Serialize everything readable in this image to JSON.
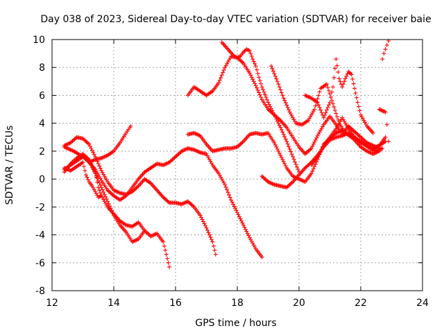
{
  "chart_data": {
    "type": "scatter",
    "title": "Day 038 of 2023, Sidereal Day-to-day VTEC variation (SDTVAR) for receiver baie",
    "xlabel": "GPS time / hours",
    "ylabel": "SDTVAR / TECUs",
    "xlim": [
      12,
      24
    ],
    "ylim": [
      -8,
      10
    ],
    "xticks": [
      12,
      14,
      16,
      18,
      20,
      22,
      24
    ],
    "yticks": [
      -8,
      -6,
      -4,
      -2,
      0,
      2,
      4,
      6,
      8,
      10
    ],
    "xtick_labels": [
      "12",
      "14",
      "16",
      "18",
      "20",
      "22",
      "24"
    ],
    "ytick_labels": [
      "-8",
      "-6",
      "-4",
      "-2",
      "0",
      "2",
      "4",
      "6",
      "8",
      "10"
    ],
    "grid": true,
    "marker": "+",
    "color": "#ff0000",
    "series": [
      {
        "name": "trace-1",
        "x": [
          12.4,
          12.7,
          13.0,
          13.2,
          13.4,
          13.6,
          13.8,
          14.0,
          14.2,
          14.4,
          14.6,
          14.8,
          15.0,
          15.2,
          15.4,
          15.6,
          15.8,
          16.0,
          16.2,
          16.4,
          16.6,
          16.8,
          17.0,
          17.2,
          17.4,
          17.6,
          17.8,
          18.0,
          18.2,
          18.4,
          18.6,
          18.8
        ],
        "y": [
          2.3,
          2.0,
          1.6,
          1.2,
          0.7,
          -0.1,
          -0.8,
          -1.2,
          -1.5,
          -1.2,
          -0.6,
          0.0,
          0.5,
          0.8,
          1.1,
          1.0,
          1.2,
          1.6,
          2.0,
          2.2,
          2.1,
          1.9,
          1.8,
          1.0,
          0.4,
          -0.4,
          -1.5,
          -2.4,
          -3.3,
          -4.2,
          -5.0,
          -5.6
        ]
      },
      {
        "name": "trace-2",
        "x": [
          12.4,
          12.6,
          12.8,
          13.0,
          13.2,
          13.4,
          13.6,
          13.8,
          14.0,
          14.2,
          14.4,
          14.6,
          14.8,
          15.0,
          15.2,
          15.4,
          15.6,
          15.8,
          16.0,
          16.2,
          16.4,
          16.6,
          16.8,
          17.0,
          17.2,
          17.3
        ],
        "y": [
          2.4,
          2.6,
          3.0,
          2.9,
          2.5,
          1.6,
          0.6,
          -0.2,
          -0.8,
          -1.0,
          -1.1,
          -0.9,
          -0.5,
          0.0,
          -0.3,
          -0.8,
          -1.3,
          -1.7,
          -1.7,
          -1.8,
          -1.6,
          -2.0,
          -2.6,
          -3.5,
          -4.5,
          -5.4
        ]
      },
      {
        "name": "trace-3",
        "x": [
          12.4,
          12.6,
          12.8,
          13.0,
          13.2,
          13.4,
          13.6,
          13.8,
          14.0,
          14.2,
          14.4,
          14.6,
          14.8,
          15.0,
          15.2,
          15.4,
          15.6,
          15.8
        ],
        "y": [
          0.7,
          1.0,
          1.3,
          1.6,
          1.3,
          0.4,
          -0.6,
          -1.6,
          -2.6,
          -3.3,
          -3.8,
          -4.5,
          -4.3,
          -3.7,
          -4.1,
          -3.9,
          -4.5,
          -6.3
        ]
      },
      {
        "name": "trace-4",
        "x": [
          12.4,
          12.6,
          12.8,
          13.0,
          13.2,
          13.4,
          13.5,
          13.6,
          13.8,
          14.0,
          14.2,
          14.4,
          14.6,
          14.8,
          15.0
        ],
        "y": [
          0.5,
          1.1,
          1.5,
          1.8,
          1.4,
          0.5,
          -0.6,
          -1.2,
          -2.0,
          -2.5,
          -3.0,
          -3.3,
          -3.4,
          -3.1,
          -3.7
        ]
      },
      {
        "name": "trace-5",
        "x": [
          12.4,
          12.6,
          12.8,
          13.0,
          13.1,
          13.2,
          13.3,
          13.4,
          13.5,
          13.6
        ],
        "y": [
          0.8,
          0.6,
          0.9,
          1.2,
          0.3,
          -0.2,
          -0.5,
          -0.9,
          -1.3,
          -1.2
        ]
      },
      {
        "name": "trace-6",
        "x": [
          13.2,
          13.4,
          13.6,
          13.8,
          14.0,
          14.2,
          14.4,
          14.55
        ],
        "y": [
          1.2,
          1.4,
          1.5,
          1.7,
          2.0,
          2.6,
          3.3,
          3.8
        ]
      },
      {
        "name": "trace-7",
        "x": [
          16.4,
          16.6,
          16.8,
          17.0,
          17.2,
          17.4,
          17.6,
          17.8,
          18.0,
          18.2,
          18.4,
          18.6,
          18.8,
          19.0,
          19.2,
          19.4,
          19.6,
          19.8,
          20.0,
          20.2,
          20.4,
          20.6,
          20.8,
          21.0,
          21.2,
          21.4,
          21.6,
          21.8,
          22.0,
          22.2,
          22.4,
          22.6
        ],
        "y": [
          3.2,
          3.3,
          3.1,
          2.5,
          2.0,
          2.1,
          2.2,
          2.2,
          2.3,
          2.7,
          3.2,
          3.3,
          3.2,
          3.3,
          2.6,
          1.7,
          0.8,
          0.2,
          0.0,
          -0.2,
          0.4,
          1.4,
          2.5,
          2.9,
          3.3,
          3.5,
          3.2,
          2.8,
          2.3,
          2.0,
          1.8,
          2.0
        ]
      },
      {
        "name": "trace-8",
        "x": [
          16.4,
          16.6,
          16.8,
          17.0,
          17.2,
          17.4,
          17.6,
          17.8,
          18.0,
          18.2,
          18.4,
          18.6,
          18.8,
          19.0,
          19.2,
          19.4,
          19.6,
          19.8,
          20.0,
          20.2,
          20.4,
          20.6,
          20.8,
          21.0,
          21.2,
          21.4,
          21.6,
          21.8,
          22.0,
          22.2,
          22.4,
          22.6
        ],
        "y": [
          6.0,
          6.6,
          6.3,
          6.0,
          6.3,
          6.9,
          8.0,
          8.8,
          8.7,
          8.3,
          7.6,
          6.7,
          5.7,
          5.0,
          4.6,
          4.2,
          3.7,
          3.0,
          2.3,
          1.8,
          2.2,
          3.1,
          3.9,
          4.5,
          3.9,
          3.2,
          3.8,
          3.4,
          3.0,
          2.6,
          2.4,
          2.2
        ]
      },
      {
        "name": "trace-9",
        "x": [
          17.5,
          17.7,
          17.9,
          18.0,
          18.1,
          18.2,
          18.3,
          18.4,
          18.5,
          18.6,
          18.7,
          18.8,
          19.0,
          19.2,
          19.4,
          19.6,
          19.8,
          20.0
        ],
        "y": [
          9.8,
          9.3,
          8.8,
          8.7,
          8.8,
          9.1,
          9.3,
          9.2,
          8.6,
          8.1,
          7.3,
          6.6,
          5.5,
          4.6,
          3.7,
          2.7,
          1.6,
          0.5
        ]
      },
      {
        "name": "trace-10",
        "x": [
          19.1,
          19.3,
          19.5,
          19.7,
          19.9,
          20.1,
          20.3,
          20.5,
          20.7,
          20.9,
          21.1,
          21.3,
          21.5,
          21.7,
          21.9,
          22.1,
          22.3,
          22.5,
          22.7
        ],
        "y": [
          8.1,
          7.0,
          5.8,
          4.8,
          4.0,
          3.9,
          4.2,
          5.0,
          6.5,
          6.8,
          5.4,
          4.0,
          3.3,
          3.0,
          2.8,
          2.5,
          2.2,
          2.0,
          2.2
        ]
      },
      {
        "name": "trace-11",
        "x": [
          18.8,
          19.0,
          19.2,
          19.4,
          19.6,
          19.8,
          20.0,
          20.2,
          20.4,
          20.6,
          20.8,
          21.0,
          21.2,
          21.4,
          21.6,
          21.8,
          22.0,
          22.2,
          22.4,
          22.6,
          22.8
        ],
        "y": [
          0.2,
          -0.2,
          -0.4,
          -0.5,
          -0.6,
          -0.2,
          0.3,
          0.8,
          1.2,
          1.7,
          2.3,
          2.8,
          3.0,
          3.1,
          3.3,
          3.0,
          2.7,
          2.4,
          2.1,
          2.4,
          3.0
        ]
      },
      {
        "name": "trace-12",
        "x": [
          20.2,
          20.4,
          20.6,
          20.8,
          21.0,
          21.1,
          21.2,
          21.3,
          21.4,
          21.5,
          21.6,
          21.7,
          21.8,
          21.9,
          22.0,
          22.2,
          22.4
        ],
        "y": [
          6.0,
          5.8,
          5.5,
          4.4,
          5.5,
          6.6,
          8.6,
          7.2,
          6.6,
          7.2,
          7.7,
          7.5,
          6.5,
          5.5,
          4.6,
          3.8,
          3.3
        ]
      },
      {
        "name": "trace-13",
        "x": [
          20.4,
          20.6,
          20.8,
          21.0,
          21.2,
          21.4,
          21.6,
          21.8,
          22.0,
          22.2,
          22.4,
          22.6,
          22.8
        ],
        "y": [
          1.0,
          1.6,
          2.4,
          3.0,
          3.6,
          4.4,
          3.6,
          3.0,
          2.6,
          2.4,
          2.2,
          2.4,
          2.7
        ]
      },
      {
        "name": "trace-14",
        "x": [
          22.6,
          22.7,
          22.8,
          22.85,
          22.9
        ],
        "y": [
          5.0,
          4.9,
          4.8,
          3.9,
          2.7
        ]
      },
      {
        "name": "trace-15",
        "x": [
          22.7,
          22.75,
          22.8,
          22.85,
          22.9
        ],
        "y": [
          8.6,
          9.0,
          9.3,
          9.6,
          9.9
        ]
      }
    ]
  }
}
